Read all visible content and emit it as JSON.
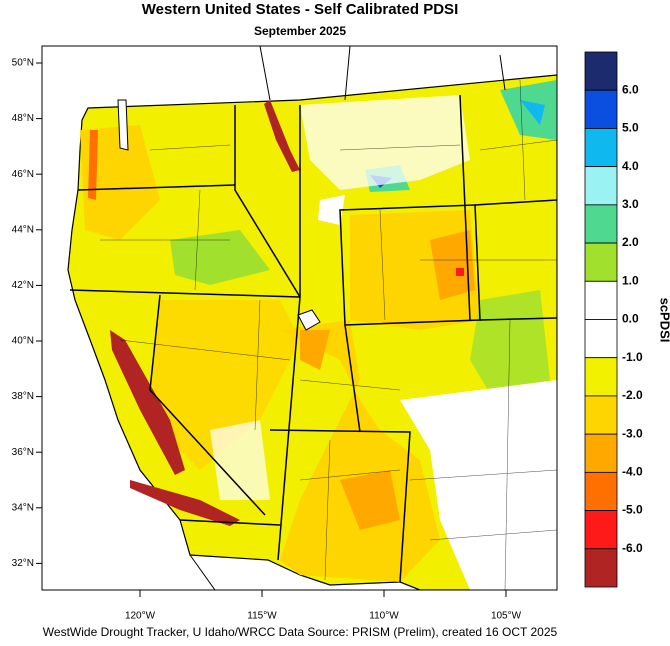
{
  "header": {
    "title": "Western United States - Self Calibrated PDSI",
    "subtitle": "September 2025"
  },
  "map": {
    "lat_labels": [
      "50°N",
      "48°N",
      "46°N",
      "44°N",
      "42°N",
      "40°N",
      "38°N",
      "36°N",
      "34°N",
      "32°N"
    ],
    "lon_labels": [
      "120°W",
      "115°W",
      "110°W",
      "105°W"
    ]
  },
  "legend": {
    "title": "scPDSI",
    "labels": [
      "6.0",
      "5.0",
      "4.0",
      "3.0",
      "2.0",
      "1.0",
      "0.0",
      "-1.0",
      "-2.0",
      "-3.0",
      "-4.0",
      "-5.0",
      "-6.0"
    ],
    "colors": [
      "#1c2a6e",
      "#0a4fe0",
      "#10b8f0",
      "#9af2f2",
      "#4fd88f",
      "#a2e02e",
      "#ffffff",
      "#ffffff",
      "#f2f200",
      "#ffd500",
      "#ffa800",
      "#ff7000",
      "#ff1a1a",
      "#b02424"
    ]
  },
  "footer": "WestWide Drought Tracker, U Idaho/WRCC Data Source: PRISM (Prelim), created 16 OCT 2025"
}
